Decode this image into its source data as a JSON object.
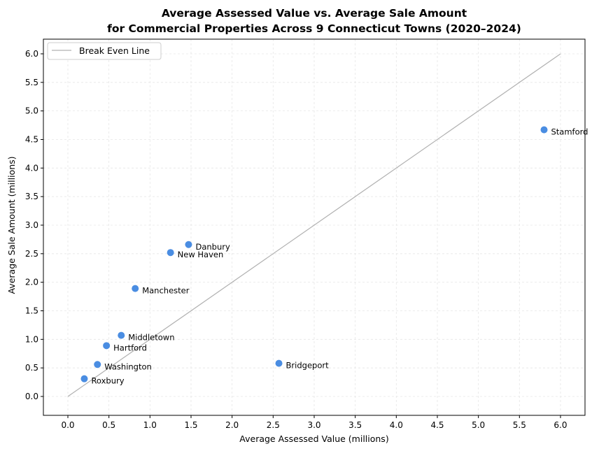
{
  "chart_data": {
    "type": "scatter",
    "title": "Average Assessed Value vs. Average Sale Amount",
    "subtitle": "for Commercial Properties Across 9 Connecticut Towns (2020–2024)",
    "xlabel": "Average Assessed Value (millions)",
    "ylabel": "Average Sale Amount (millions)",
    "xlim": [
      -0.3,
      6.3
    ],
    "ylim": [
      -0.32,
      6.3
    ],
    "xticks": [
      "0.0",
      "0.5",
      "1.0",
      "1.5",
      "2.0",
      "2.5",
      "3.0",
      "3.5",
      "4.0",
      "4.5",
      "5.0",
      "5.5",
      "6.0"
    ],
    "yticks": [
      "0.0",
      "0.5",
      "1.0",
      "1.5",
      "2.0",
      "2.5",
      "3.0",
      "3.5",
      "4.0",
      "4.5",
      "5.0",
      "5.5",
      "6.0"
    ],
    "grid": true,
    "legend": {
      "placement": "top-left",
      "entries": [
        "Break Even Line"
      ]
    },
    "reference_line": {
      "name": "Break Even Line",
      "x": [
        0,
        6
      ],
      "y": [
        0,
        6
      ],
      "color": "#b0b0b0"
    },
    "point_color": "#4a8de2",
    "points": [
      {
        "label": "Stamford",
        "x": 5.8,
        "y": 4.67
      },
      {
        "label": "Danbury",
        "x": 1.47,
        "y": 2.66
      },
      {
        "label": "New Haven",
        "x": 1.25,
        "y": 2.52
      },
      {
        "label": "Manchester",
        "x": 0.82,
        "y": 1.89
      },
      {
        "label": "Middletown",
        "x": 0.65,
        "y": 1.07
      },
      {
        "label": "Hartford",
        "x": 0.47,
        "y": 0.89
      },
      {
        "label": "Washington",
        "x": 0.36,
        "y": 0.56
      },
      {
        "label": "Roxbury",
        "x": 0.2,
        "y": 0.31
      },
      {
        "label": "Bridgeport",
        "x": 2.57,
        "y": 0.58
      }
    ]
  }
}
